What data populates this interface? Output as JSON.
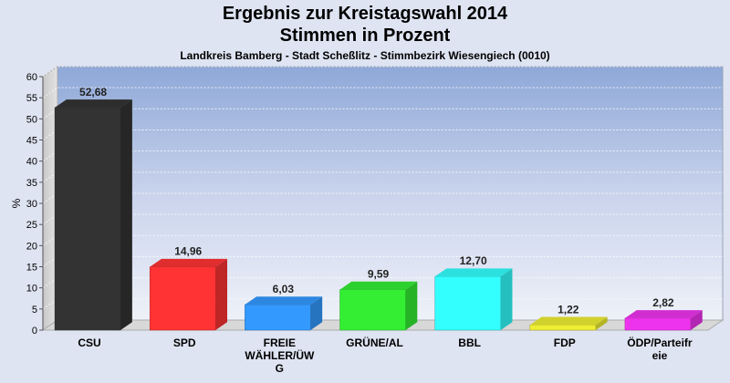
{
  "chart_data": {
    "type": "bar",
    "title": "Ergebnis zur Kreistagswahl 2014",
    "subtitle": "Stimmen in Prozent",
    "caption": "Landkreis Bamberg - Stadt Scheßlitz - Stimmbezirk Wiesengiech (0010)",
    "xlabel": "",
    "ylabel": "%",
    "ylim": [
      0,
      60
    ],
    "yticks": [
      0,
      5,
      10,
      15,
      20,
      25,
      30,
      35,
      40,
      45,
      50,
      55,
      60
    ],
    "grid": true,
    "categories": [
      [
        "CSU"
      ],
      [
        "SPD"
      ],
      [
        "FREIE",
        "WÄHLER/ÜW",
        "G"
      ],
      [
        "GRÜNE/AL"
      ],
      [
        "BBL"
      ],
      [
        "FDP"
      ],
      [
        "ÖDP/Parteifr",
        "eie"
      ]
    ],
    "values": [
      52.68,
      14.96,
      6.03,
      9.59,
      12.7,
      1.22,
      2.82
    ],
    "value_labels": [
      "52,68",
      "14,96",
      "6,03",
      "9,59",
      "12,70",
      "1,22",
      "2,82"
    ],
    "colors": [
      "#333333",
      "#ff3333",
      "#3399ff",
      "#33ee33",
      "#33ffff",
      "#eeee33",
      "#ee33ee"
    ]
  }
}
